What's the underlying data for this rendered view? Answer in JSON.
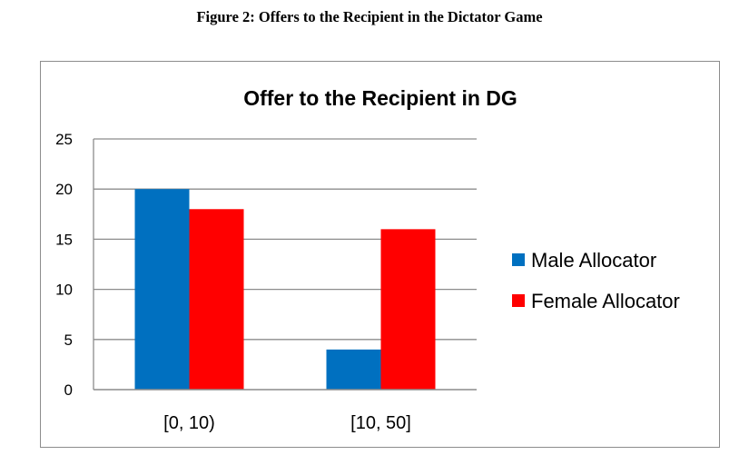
{
  "figure_caption": "Figure 2: Offers to the Recipient in the Dictator Game",
  "chart_data": {
    "type": "bar",
    "title": "Offer to the Recipient in DG",
    "categories": [
      "[0, 10)",
      "[10, 50]"
    ],
    "series": [
      {
        "name": "Male Allocator",
        "color": "#0070c0",
        "values": [
          20,
          4
        ]
      },
      {
        "name": "Female Allocator",
        "color": "#ff0000",
        "values": [
          18,
          16
        ]
      }
    ],
    "ylim": [
      0,
      25
    ],
    "yticks": [
      0,
      5,
      10,
      15,
      20,
      25
    ],
    "xlabel": "",
    "ylabel": "",
    "grid": true,
    "legend_position": "right"
  }
}
